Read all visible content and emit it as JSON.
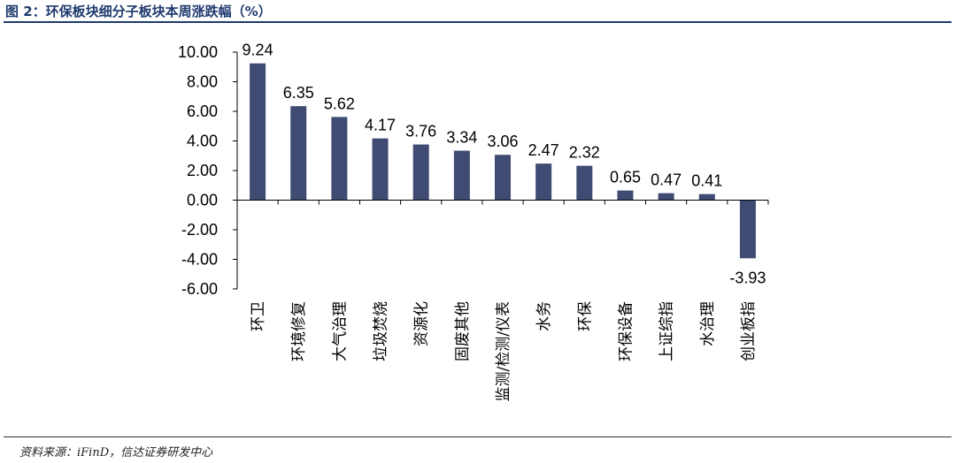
{
  "figure": {
    "title": "图 2：环保板块细分子板块本周涨跌幅（%）",
    "source": "资料来源：iFinD，信达证券研发中心"
  },
  "chart_data": {
    "type": "bar",
    "title": "",
    "xlabel": "",
    "ylabel": "",
    "categories": [
      "环卫",
      "环境修复",
      "大气治理",
      "垃圾焚烧",
      "资源化",
      "固废其他",
      "监测/检测/仪表",
      "水务",
      "环保",
      "环保设备",
      "上证综指",
      "水治理",
      "创业板指"
    ],
    "values": [
      9.24,
      6.35,
      5.62,
      4.17,
      3.76,
      3.34,
      3.06,
      2.47,
      2.32,
      0.65,
      0.47,
      0.41,
      -3.93
    ],
    "value_labels": [
      "9.24",
      "6.35",
      "5.62",
      "4.17",
      "3.76",
      "3.34",
      "3.06",
      "2.47",
      "2.32",
      "0.65",
      "0.47",
      "0.41",
      "-3.93"
    ],
    "ylim": [
      -6,
      10
    ],
    "yticks": [
      10,
      8,
      6,
      4,
      2,
      0,
      -2,
      -4,
      -6
    ],
    "ytick_labels": [
      "10.00",
      "8.00",
      "6.00",
      "4.00",
      "2.00",
      "0.00",
      "-2.00",
      "-4.00",
      "-6.00"
    ],
    "bar_color": "#3f4b73",
    "grid": false,
    "legend": "none"
  }
}
